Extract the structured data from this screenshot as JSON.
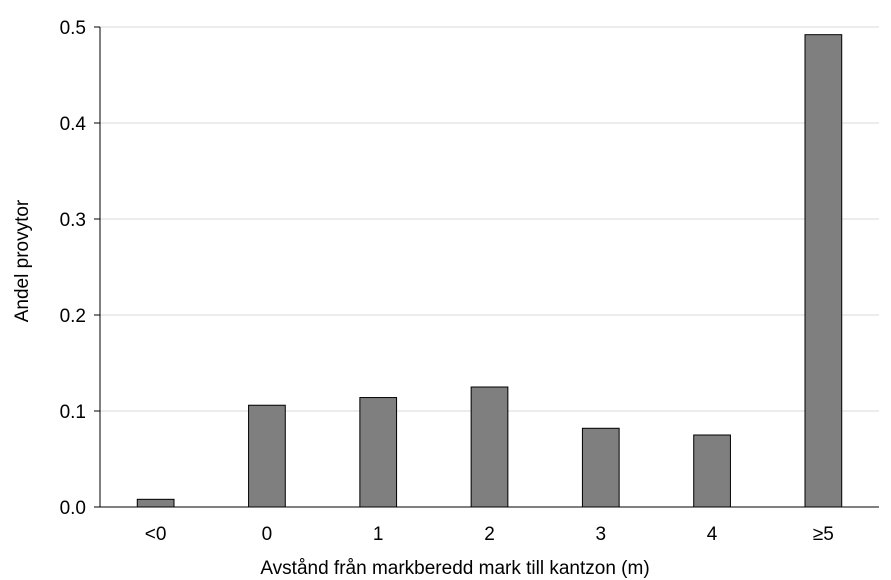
{
  "chart_data": {
    "type": "bar",
    "title": "",
    "xlabel": "Avstånd från markberedd mark till kantzon (m)",
    "ylabel": "Andel provytor",
    "categories": [
      "<0",
      "0",
      "1",
      "2",
      "3",
      "4",
      "≥5"
    ],
    "values": [
      0.008,
      0.106,
      0.114,
      0.125,
      0.082,
      0.075,
      0.492
    ],
    "ylim": [
      0,
      0.5
    ],
    "yticks": [
      "0.0",
      "0.1",
      "0.2",
      "0.3",
      "0.4",
      "0.5"
    ],
    "grid": true,
    "legend": "none",
    "bar_color": "#7f7f7f",
    "bar_edge_color": "#000000",
    "grid_color": "#d9d9d9"
  }
}
